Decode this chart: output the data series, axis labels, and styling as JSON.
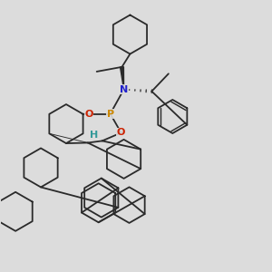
{
  "bg_color": "#dcdcdc",
  "line_color": "#2a2a2a",
  "bond_lw": 1.3,
  "P_color": "#cc8800",
  "O_color": "#cc2200",
  "N_color": "#2222cc",
  "H_color": "#339999",
  "font_size_atom": 8,
  "fig_width": 3.0,
  "fig_height": 3.0,
  "dpi": 100,
  "xlim": [
    0,
    10
  ],
  "ylim": [
    0,
    10
  ]
}
